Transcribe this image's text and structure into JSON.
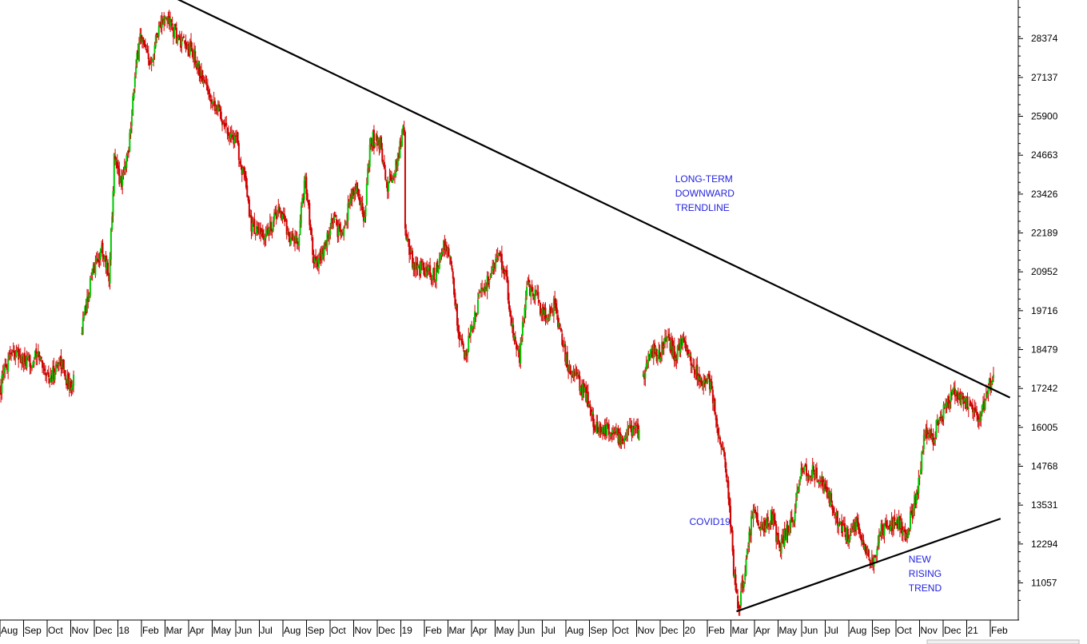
{
  "chart_data": {
    "type": "candlestick",
    "title": "",
    "xlabel": "",
    "ylabel": "",
    "colors": {
      "up": "#00c800",
      "down": "#d00000",
      "trendline": "#000000",
      "annotation": "#1f1fe0"
    },
    "y_ticks": [
      "28374",
      "27137",
      "25900",
      "24663",
      "23426",
      "22189",
      "20952",
      "19716",
      "18479",
      "17242",
      "16005",
      "14768",
      "13531",
      "12294",
      "11057"
    ],
    "ylim": [
      9900,
      29600
    ],
    "x_ticks": [
      {
        "label": "Aug",
        "t": 0
      },
      {
        "label": "Sep",
        "t": 1
      },
      {
        "label": "Oct",
        "t": 2
      },
      {
        "label": "Nov",
        "t": 3
      },
      {
        "label": "Dec",
        "t": 4
      },
      {
        "label": "18",
        "t": 5
      },
      {
        "label": "Feb",
        "t": 6
      },
      {
        "label": "Mar",
        "t": 7
      },
      {
        "label": "Apr",
        "t": 8
      },
      {
        "label": "May",
        "t": 9
      },
      {
        "label": "Jun",
        "t": 10
      },
      {
        "label": "Jul",
        "t": 11
      },
      {
        "label": "Aug",
        "t": 12
      },
      {
        "label": "Sep",
        "t": 13
      },
      {
        "label": "Oct",
        "t": 14
      },
      {
        "label": "Nov",
        "t": 15
      },
      {
        "label": "Dec",
        "t": 16
      },
      {
        "label": "19",
        "t": 17
      },
      {
        "label": "Feb",
        "t": 18
      },
      {
        "label": "Mar",
        "t": 19
      },
      {
        "label": "Apr",
        "t": 20
      },
      {
        "label": "May",
        "t": 21
      },
      {
        "label": "Jun",
        "t": 22
      },
      {
        "label": "Jul",
        "t": 23
      },
      {
        "label": "Aug",
        "t": 24
      },
      {
        "label": "Sep",
        "t": 25
      },
      {
        "label": "Oct",
        "t": 26
      },
      {
        "label": "Nov",
        "t": 27
      },
      {
        "label": "Dec",
        "t": 28
      },
      {
        "label": "20",
        "t": 29
      },
      {
        "label": "Feb",
        "t": 30
      },
      {
        "label": "Mar",
        "t": 31
      },
      {
        "label": "Apr",
        "t": 32
      },
      {
        "label": "May",
        "t": 33
      },
      {
        "label": "Jun",
        "t": 34
      },
      {
        "label": "Jul",
        "t": 35
      },
      {
        "label": "Aug",
        "t": 36
      },
      {
        "label": "Sep",
        "t": 37
      },
      {
        "label": "Oct",
        "t": 38
      },
      {
        "label": "Nov",
        "t": 39
      },
      {
        "label": "Dec",
        "t": 40
      },
      {
        "label": "21",
        "t": 41
      },
      {
        "label": "Feb",
        "t": 42
      }
    ],
    "price_path": [
      [
        -0.1,
        17300
      ],
      [
        0.3,
        18500
      ],
      [
        1.0,
        18000
      ],
      [
        1.5,
        18300
      ],
      [
        2.0,
        17500
      ],
      [
        2.4,
        18200
      ],
      [
        2.8,
        17300
      ],
      [
        3.0,
        17700
      ],
      [
        3.3,
        19000
      ],
      [
        3.8,
        21000
      ],
      [
        4.2,
        21700
      ],
      [
        4.5,
        20800
      ],
      [
        4.7,
        24500
      ],
      [
        5.0,
        23800
      ],
      [
        5.3,
        24800
      ],
      [
        5.5,
        26500
      ],
      [
        5.8,
        28500
      ],
      [
        6.2,
        27500
      ],
      [
        6.6,
        28800
      ],
      [
        7.0,
        29000
      ],
      [
        7.5,
        28200
      ],
      [
        8.0,
        28000
      ],
      [
        8.5,
        27000
      ],
      [
        9.0,
        26300
      ],
      [
        9.5,
        25500
      ],
      [
        9.9,
        25100
      ],
      [
        10.2,
        24000
      ],
      [
        10.5,
        22500
      ],
      [
        11.0,
        22000
      ],
      [
        11.4,
        22500
      ],
      [
        11.7,
        23000
      ],
      [
        12.2,
        22000
      ],
      [
        12.5,
        21800
      ],
      [
        12.8,
        24000
      ],
      [
        13.2,
        21200
      ],
      [
        13.6,
        21600
      ],
      [
        14.0,
        22700
      ],
      [
        14.3,
        22000
      ],
      [
        14.7,
        23200
      ],
      [
        15.0,
        23700
      ],
      [
        15.3,
        22600
      ],
      [
        15.6,
        25200
      ],
      [
        16.0,
        25000
      ],
      [
        16.3,
        23600
      ],
      [
        16.7,
        24400
      ],
      [
        17.0,
        25700
      ],
      [
        17.05,
        22200
      ],
      [
        17.4,
        21200
      ],
      [
        17.8,
        21000
      ],
      [
        18.3,
        20800
      ],
      [
        18.7,
        21800
      ],
      [
        19.0,
        21200
      ],
      [
        19.3,
        19000
      ],
      [
        19.6,
        18200
      ],
      [
        20.0,
        19600
      ],
      [
        20.3,
        20400
      ],
      [
        20.6,
        20700
      ],
      [
        21.0,
        21500
      ],
      [
        21.3,
        20900
      ],
      [
        21.6,
        19000
      ],
      [
        21.9,
        18200
      ],
      [
        22.2,
        20500
      ],
      [
        22.6,
        20200
      ],
      [
        23.0,
        19400
      ],
      [
        23.4,
        20000
      ],
      [
        23.7,
        18700
      ],
      [
        24.0,
        17900
      ],
      [
        24.4,
        17400
      ],
      [
        24.7,
        17100
      ],
      [
        25.0,
        16200
      ],
      [
        25.4,
        15800
      ],
      [
        25.8,
        16000
      ],
      [
        26.2,
        15600
      ],
      [
        26.6,
        16000
      ],
      [
        27.0,
        15900
      ],
      [
        27.1,
        17600
      ],
      [
        27.5,
        18500
      ],
      [
        27.8,
        18200
      ],
      [
        28.1,
        19000
      ],
      [
        28.5,
        18300
      ],
      [
        28.8,
        18700
      ],
      [
        29.2,
        18000
      ],
      [
        29.6,
        17500
      ],
      [
        30.0,
        17400
      ],
      [
        30.3,
        16000
      ],
      [
        30.6,
        14900
      ],
      [
        30.8,
        13500
      ],
      [
        31.0,
        11200
      ],
      [
        31.2,
        10300
      ],
      [
        31.5,
        11600
      ],
      [
        31.8,
        13500
      ],
      [
        32.2,
        12800
      ],
      [
        32.6,
        13200
      ],
      [
        32.9,
        12100
      ],
      [
        33.3,
        12800
      ],
      [
        33.6,
        13300
      ],
      [
        33.8,
        14700
      ],
      [
        34.2,
        14600
      ],
      [
        34.6,
        14500
      ],
      [
        35.0,
        13900
      ],
      [
        35.4,
        13000
      ],
      [
        35.8,
        12600
      ],
      [
        36.2,
        12900
      ],
      [
        36.5,
        12300
      ],
      [
        36.9,
        11700
      ],
      [
        37.2,
        12800
      ],
      [
        37.6,
        12900
      ],
      [
        38.0,
        13000
      ],
      [
        38.3,
        12600
      ],
      [
        38.6,
        13500
      ],
      [
        38.8,
        14000
      ],
      [
        39.1,
        16000
      ],
      [
        39.4,
        15600
      ],
      [
        39.7,
        16300
      ],
      [
        40.0,
        16600
      ],
      [
        40.3,
        17100
      ],
      [
        40.7,
        16800
      ],
      [
        41.0,
        16700
      ],
      [
        41.4,
        16100
      ],
      [
        41.8,
        17300
      ],
      [
        42.0,
        17500
      ]
    ],
    "gaps": [
      [
        3.0,
        3.3
      ],
      [
        27.0,
        27.1
      ]
    ],
    "trendlines": [
      {
        "name": "long-term-downward",
        "p1": {
          "t": 7.3,
          "y": 29660
        },
        "p2": {
          "t": 42.7,
          "y": 16950
        }
      },
      {
        "name": "new-rising",
        "p1": {
          "t": 31.1,
          "y": 10150
        },
        "p2": {
          "t": 42.3,
          "y": 13100
        }
      }
    ],
    "annotations": [
      {
        "name": "long-term-downward-label",
        "lines": [
          "LONG-TERM",
          "DOWNWARD",
          "TRENDLINE"
        ],
        "t": 28.5,
        "y": 23800
      },
      {
        "name": "covid19-label",
        "lines": [
          "COVID19"
        ],
        "t": 29.1,
        "y": 12900
      },
      {
        "name": "new-rising-trend-label",
        "lines": [
          "NEW",
          "RISING",
          "TREND"
        ],
        "t": 38.4,
        "y": 11700
      }
    ]
  }
}
